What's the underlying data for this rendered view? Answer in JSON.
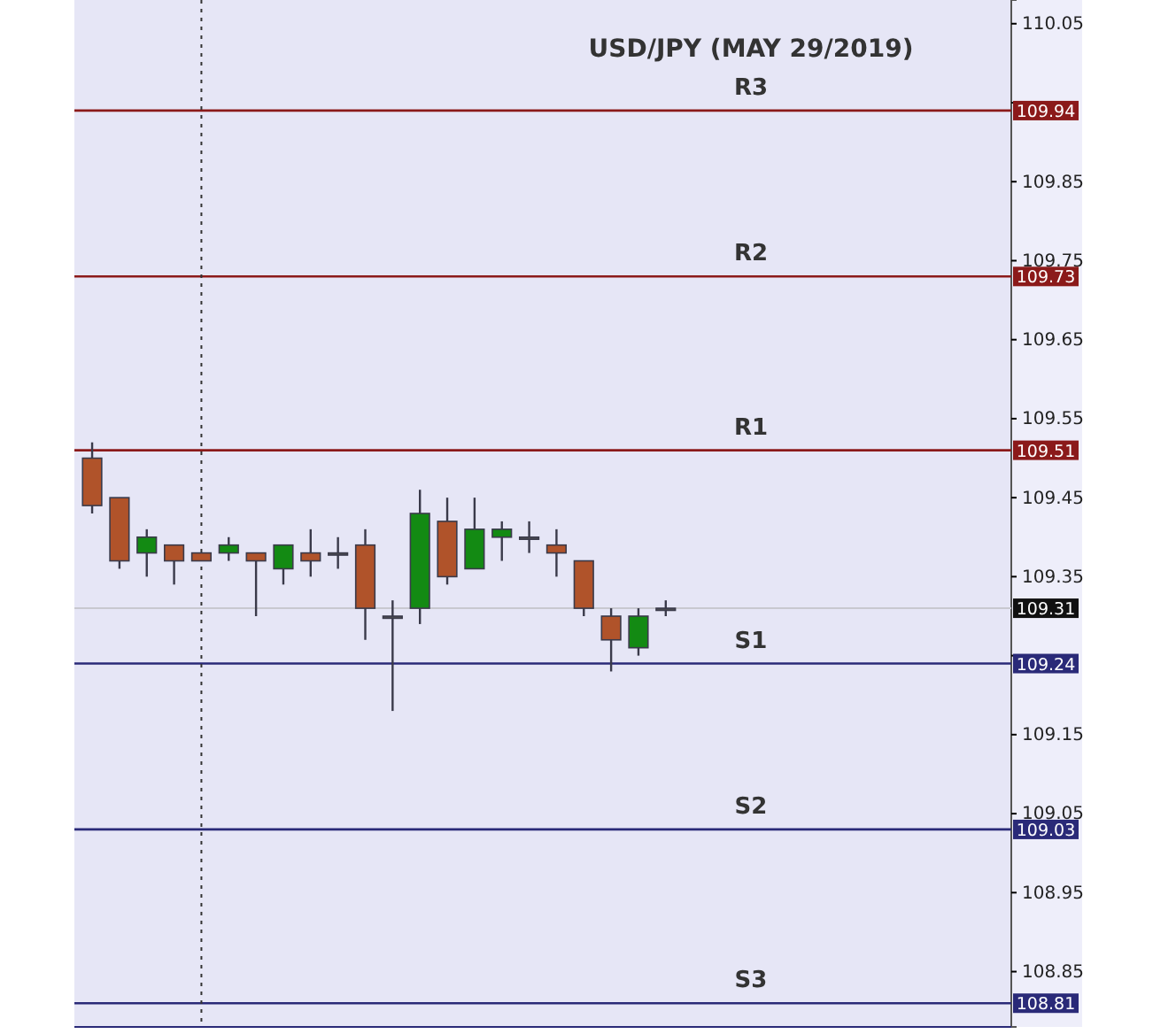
{
  "chart_data": {
    "type": "candlestick",
    "title": "USD/JPY (MAY 29/2019)",
    "categories": [
      null,
      null,
      null,
      null,
      null,
      null,
      null,
      null,
      null,
      null,
      null,
      null,
      null,
      null,
      null,
      null,
      null,
      null,
      null,
      null,
      null,
      null,
      null,
      null,
      null,
      null,
      null,
      null,
      null,
      null,
      null,
      null,
      null,
      null
    ],
    "ohlc": [
      [
        109.5,
        109.52,
        109.43,
        109.44
      ],
      [
        109.45,
        109.45,
        109.36,
        109.37
      ],
      [
        109.38,
        109.41,
        109.35,
        109.4
      ],
      [
        109.39,
        109.39,
        109.34,
        109.37
      ],
      [
        109.38,
        109.38,
        109.37,
        109.37
      ],
      [
        109.38,
        109.4,
        109.37,
        109.39
      ],
      [
        109.38,
        109.38,
        109.3,
        109.37
      ],
      [
        109.36,
        109.39,
        109.34,
        109.39
      ],
      [
        109.38,
        109.41,
        109.35,
        109.37
      ],
      [
        109.38,
        109.4,
        109.36,
        109.38
      ],
      [
        109.39,
        109.41,
        109.27,
        109.31
      ],
      [
        109.3,
        109.32,
        109.18,
        109.3
      ],
      [
        109.31,
        109.46,
        109.29,
        109.43
      ],
      [
        109.42,
        109.45,
        109.34,
        109.35
      ],
      [
        109.36,
        109.45,
        109.36,
        109.41
      ],
      [
        109.4,
        109.42,
        109.37,
        109.41
      ],
      [
        109.4,
        109.42,
        109.38,
        109.4
      ],
      [
        109.39,
        109.41,
        109.35,
        109.38
      ],
      [
        109.37,
        109.37,
        109.3,
        109.31
      ],
      [
        109.3,
        109.31,
        109.23,
        109.27
      ],
      [
        109.26,
        109.31,
        109.25,
        109.3
      ],
      [
        109.31,
        109.32,
        109.3,
        109.31
      ],
      null,
      null,
      null,
      null,
      null,
      null,
      null,
      null,
      null,
      null,
      null,
      null
    ],
    "ylim": [
      108.78,
      110.08
    ],
    "yticks": [
      110.05,
      {
        "value": 109.95,
        "label": null
      },
      109.85,
      109.75,
      109.65,
      109.55,
      109.45,
      109.35,
      {
        "value": 109.25,
        "label": null
      },
      109.15,
      109.05,
      108.95,
      108.85
    ],
    "annotations": [
      "109.94",
      "109.73",
      "109.51",
      "109.31",
      "109.24",
      "109.03",
      "108.81"
    ],
    "ref_lines": [
      {
        "axis": "y",
        "value": 109.94,
        "label": "R3",
        "color": "#8b1a1a"
      },
      {
        "axis": "y",
        "value": 109.73,
        "label": "R2",
        "color": "#8b1a1a"
      },
      {
        "axis": "y",
        "value": 109.51,
        "label": "R1",
        "color": "#8b1a1a"
      },
      {
        "axis": "y",
        "value": 109.31,
        "label": null,
        "color": "#c8c8d0"
      },
      {
        "axis": "y",
        "value": 109.24,
        "label": "S1",
        "color": "#2a2a78"
      },
      {
        "axis": "y",
        "value": 109.03,
        "label": "S2",
        "color": "#2a2a78"
      },
      {
        "axis": "y",
        "value": 108.81,
        "label": "S3",
        "color": "#2a2a78"
      }
    ],
    "grid": false
  }
}
